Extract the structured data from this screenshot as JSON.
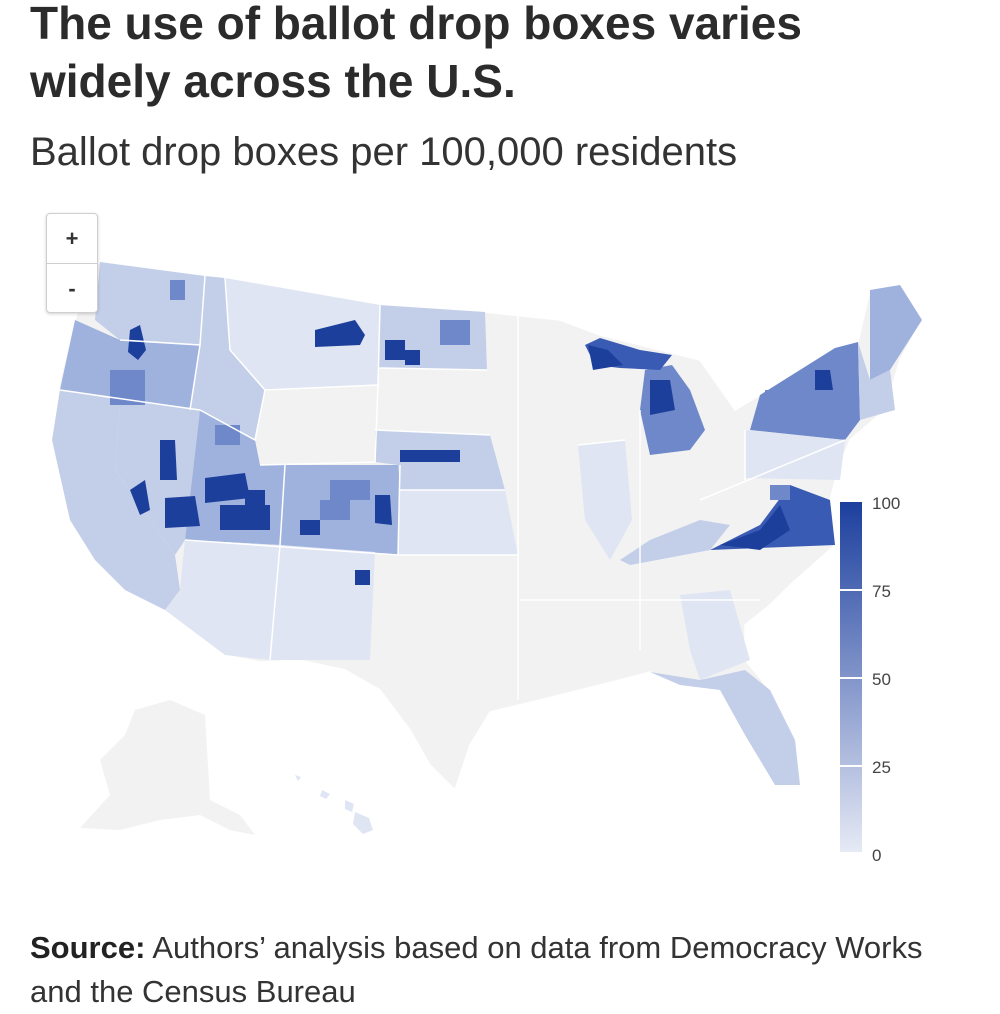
{
  "header": {
    "title": "The use of ballot drop boxes varies widely across the U.S.",
    "subtitle": "Ballot drop boxes per 100,000 residents"
  },
  "zoom_controls": {
    "zoom_in": "+",
    "zoom_out": "-"
  },
  "legend": {
    "ticks": [
      "100",
      "75",
      "50",
      "25",
      "0"
    ],
    "color_low": "#e6eaf5",
    "color_high": "#1c3f9e"
  },
  "colors": {
    "no_data": "#f2f2f2",
    "state_border": "#ffffff",
    "shade_1": "#dfe5f3",
    "shade_2": "#c3cfe9",
    "shade_3": "#9fb1dd",
    "shade_4": "#6f88ca",
    "shade_5": "#3a5bb3",
    "shade_6": "#1d3f9c"
  },
  "source": {
    "label": "Source:",
    "text": "Authors’ analysis based on data from Democracy Works and the Census Bureau"
  }
}
